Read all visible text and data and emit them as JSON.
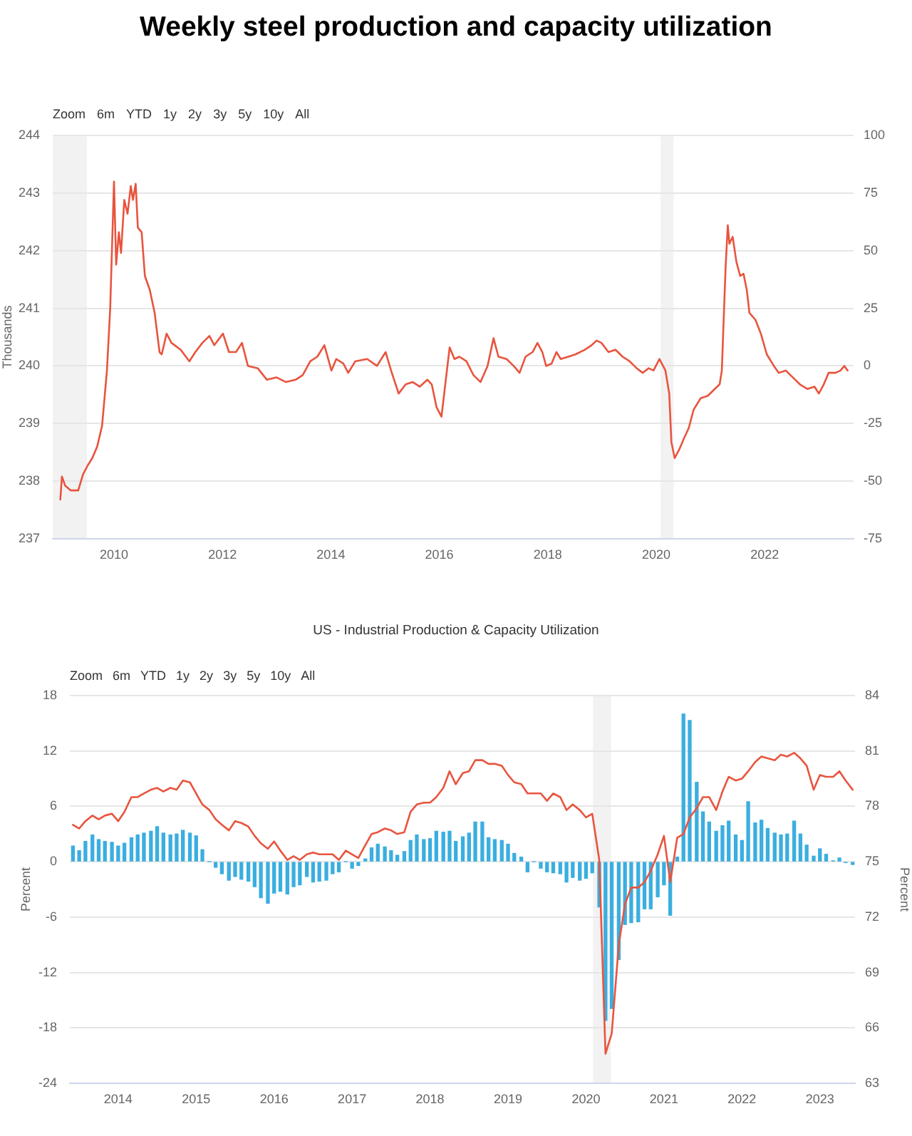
{
  "chart_data": [
    {
      "type": "line",
      "title": "Weekly steel production and capacity utilization",
      "ylabel": "Thousands",
      "annotations": [
        "Zoom",
        "6m",
        "YTD",
        "1y",
        "2y",
        "3y",
        "5y",
        "10y",
        "All"
      ],
      "x": [
        2009.01,
        2009.04,
        2009.1,
        2009.2,
        2009.34,
        2009.43,
        2009.52,
        2009.6,
        2009.69,
        2009.78,
        2009.87,
        2009.93,
        2010.0,
        2010.04,
        2010.09,
        2010.13,
        2010.19,
        2010.25,
        2010.31,
        2010.35,
        2010.4,
        2010.44,
        2010.51,
        2010.57,
        2010.66,
        2010.75,
        2010.84,
        2010.88,
        2010.97,
        2011.06,
        2011.23,
        2011.39,
        2011.5,
        2011.63,
        2011.76,
        2011.85,
        2012.01,
        2012.12,
        2012.25,
        2012.36,
        2012.47,
        2012.65,
        2012.82,
        2013.0,
        2013.17,
        2013.35,
        2013.48,
        2013.62,
        2013.75,
        2013.88,
        2014.01,
        2014.1,
        2014.23,
        2014.32,
        2014.45,
        2014.67,
        2014.85,
        2015.01,
        2015.11,
        2015.25,
        2015.38,
        2015.51,
        2015.64,
        2015.78,
        2015.86,
        2015.95,
        2016.04,
        2016.1,
        2016.19,
        2016.28,
        2016.37,
        2016.5,
        2016.63,
        2016.76,
        2016.89,
        2017.0,
        2017.09,
        2017.24,
        2017.37,
        2017.48,
        2017.59,
        2017.72,
        2017.81,
        2017.9,
        2017.97,
        2018.07,
        2018.16,
        2018.24,
        2018.38,
        2018.51,
        2018.68,
        2018.81,
        2018.9,
        2018.99,
        2019.12,
        2019.25,
        2019.38,
        2019.51,
        2019.64,
        2019.75,
        2019.86,
        2019.95,
        2020.06,
        2020.17,
        2020.24,
        2020.28,
        2020.34,
        2020.43,
        2020.52,
        2020.6,
        2020.69,
        2020.82,
        2020.95,
        2021.08,
        2021.17,
        2021.21,
        2021.28,
        2021.32,
        2021.35,
        2021.41,
        2021.48,
        2021.55,
        2021.61,
        2021.67,
        2021.72,
        2021.83,
        2021.93,
        2022.04,
        2022.17,
        2022.26,
        2022.39,
        2022.52,
        2022.65,
        2022.79,
        2022.92,
        2023.0,
        2023.09,
        2023.18,
        2023.31,
        2023.4,
        2023.47,
        2023.53
      ],
      "series": [
        {
          "color": "#e8543e",
          "axis": "y2",
          "values": [
            -58,
            -48,
            -52,
            -54,
            -54,
            -47,
            -43,
            -40,
            -35,
            -26,
            -2,
            25,
            80,
            44,
            58,
            49,
            72,
            66,
            78,
            72,
            79,
            60,
            58,
            39,
            33,
            23,
            6,
            5,
            14,
            10,
            7,
            2,
            6,
            10,
            13,
            9,
            14,
            6,
            6,
            10,
            0,
            -1,
            -6,
            -5,
            -7,
            -6,
            -4,
            2,
            4,
            9,
            -2,
            3,
            1,
            -3,
            2,
            3,
            0,
            6,
            -2,
            -12,
            -8,
            -7,
            -9,
            -6,
            -8,
            -18,
            -22,
            -10,
            8,
            3,
            4,
            2,
            -4,
            -7,
            0,
            12,
            4,
            3,
            0,
            -3,
            4,
            6,
            10,
            6,
            0,
            1,
            6,
            3,
            4,
            5,
            7,
            9,
            11,
            10,
            6,
            7,
            4,
            2,
            -1,
            -3,
            -1,
            -2,
            3,
            -2,
            -12,
            -33,
            -40,
            -36,
            -31,
            -27,
            -19,
            -14,
            -13,
            -10,
            -8,
            -2,
            43,
            61,
            53,
            56,
            45,
            39,
            40,
            33,
            23,
            20,
            14,
            5,
            0,
            -3,
            -2,
            -5,
            -8,
            -10,
            -9,
            -12,
            -8,
            -3,
            -3,
            -2,
            0,
            -2
          ]
        }
      ],
      "xlim": [
        2008.87,
        2023.64
      ],
      "xticks": [
        2010,
        2012,
        2014,
        2016,
        2018,
        2020,
        2022
      ],
      "ylim": [
        237,
        244
      ],
      "yticks": [
        237,
        238,
        239,
        240,
        241,
        242,
        243,
        244
      ],
      "y2lim": [
        -75,
        100
      ],
      "y2ticks": [
        -75,
        -50,
        -25,
        0,
        25,
        50,
        75,
        100
      ],
      "bands": [
        {
          "axis": "x",
          "from": 2008.87,
          "to": 2009.5,
          "color": "#f2f2f2"
        },
        {
          "axis": "x",
          "from": 2020.08,
          "to": 2020.32,
          "color": "#f2f2f2"
        }
      ],
      "grid": "y"
    },
    {
      "type": "bar",
      "title": "US - Industrial Production & Capacity Utilization",
      "ylabel": "Percent",
      "y2label": "Percent",
      "annotations": [
        "Zoom",
        "6m",
        "YTD",
        "1y",
        "2y",
        "3y",
        "5y",
        "10y",
        "All"
      ],
      "x": [
        2013.42,
        2013.5,
        2013.58,
        2013.67,
        2013.75,
        2013.83,
        2013.92,
        2014.0,
        2014.08,
        2014.17,
        2014.25,
        2014.33,
        2014.42,
        2014.5,
        2014.58,
        2014.67,
        2014.75,
        2014.83,
        2014.92,
        2015.0,
        2015.08,
        2015.17,
        2015.25,
        2015.33,
        2015.42,
        2015.5,
        2015.58,
        2015.67,
        2015.75,
        2015.83,
        2015.92,
        2016.0,
        2016.08,
        2016.17,
        2016.25,
        2016.33,
        2016.42,
        2016.5,
        2016.58,
        2016.67,
        2016.75,
        2016.83,
        2016.92,
        2017.0,
        2017.08,
        2017.17,
        2017.25,
        2017.33,
        2017.42,
        2017.5,
        2017.58,
        2017.67,
        2017.75,
        2017.83,
        2017.92,
        2018.0,
        2018.08,
        2018.17,
        2018.25,
        2018.33,
        2018.42,
        2018.5,
        2018.58,
        2018.67,
        2018.75,
        2018.83,
        2018.92,
        2019.0,
        2019.08,
        2019.17,
        2019.25,
        2019.33,
        2019.42,
        2019.5,
        2019.58,
        2019.67,
        2019.75,
        2019.83,
        2019.92,
        2020.0,
        2020.08,
        2020.17,
        2020.25,
        2020.33,
        2020.42,
        2020.5,
        2020.58,
        2020.67,
        2020.75,
        2020.83,
        2020.92,
        2021.0,
        2021.08,
        2021.17,
        2021.25,
        2021.33,
        2021.42,
        2021.5,
        2021.58,
        2021.67,
        2021.75,
        2021.83,
        2021.92,
        2022.0,
        2022.08,
        2022.17,
        2022.25,
        2022.33,
        2022.42,
        2022.5,
        2022.58,
        2022.67,
        2022.75,
        2022.83,
        2022.92,
        2023.0,
        2023.08,
        2023.17,
        2023.25,
        2023.33,
        2023.42
      ],
      "series": [
        {
          "color": "#3aaee0",
          "values": [
            1.7,
            1.2,
            2.2,
            2.9,
            2.4,
            2.2,
            2.1,
            1.7,
            2.0,
            2.6,
            2.9,
            3.1,
            3.3,
            3.8,
            3.1,
            2.9,
            3.0,
            3.4,
            3.1,
            2.8,
            1.3,
            0,
            -0.6,
            -1.3,
            -2.0,
            -1.6,
            -1.9,
            -2.1,
            -2.7,
            -3.9,
            -4.5,
            -3.4,
            -3.2,
            -3.5,
            -2.7,
            -2.5,
            -1.6,
            -2.2,
            -2.1,
            -2.0,
            -1.3,
            -1.1,
            0,
            -0.7,
            -0.4,
            0.3,
            1.5,
            1.9,
            1.6,
            1.2,
            0.7,
            1.1,
            2.3,
            2.9,
            2.4,
            2.5,
            3.3,
            3.2,
            3.3,
            2.2,
            2.7,
            3.1,
            4.3,
            4.3,
            2.6,
            2.4,
            2.3,
            1.9,
            0.9,
            0.5,
            -1.1,
            0,
            -0.7,
            -1.1,
            -1.2,
            -1.3,
            -2.2,
            -1.7,
            -2.0,
            -1.8,
            -1.2,
            -4.9,
            -17.2,
            -15.9,
            -10.6,
            -6.8,
            -6.6,
            -6.5,
            -5.1,
            -5.1,
            -3.8,
            -2.5,
            -5.8,
            0.5,
            16.0,
            15.3,
            8.6,
            5.4,
            4.3,
            3.3,
            3.9,
            4.4,
            2.9,
            2.3,
            6.5,
            4.2,
            4.5,
            3.6,
            3.1,
            2.9,
            3.0,
            4.4,
            3.0,
            1.8,
            0.6,
            1.4,
            0.8,
            0.1,
            0.4,
            -0.1,
            -0.3
          ]
        },
        {
          "type": "line",
          "color": "#e8543e",
          "axis": "y2",
          "values": [
            77.0,
            76.8,
            77.2,
            77.5,
            77.3,
            77.5,
            77.6,
            77.2,
            77.7,
            78.5,
            78.5,
            78.7,
            78.9,
            79.0,
            78.8,
            79.0,
            78.9,
            79.4,
            79.3,
            78.7,
            78.1,
            77.8,
            77.3,
            77.0,
            76.7,
            77.2,
            77.1,
            76.9,
            76.4,
            76.0,
            75.7,
            76.1,
            75.6,
            75.1,
            75.3,
            75.1,
            75.4,
            75.5,
            75.4,
            75.4,
            75.4,
            75.1,
            75.6,
            75.4,
            75.2,
            75.9,
            76.5,
            76.6,
            76.8,
            76.7,
            76.5,
            76.6,
            77.7,
            78.1,
            78.2,
            78.2,
            78.5,
            79.0,
            79.9,
            79.2,
            79.8,
            79.9,
            80.5,
            80.5,
            80.3,
            80.3,
            80.2,
            79.7,
            79.3,
            79.2,
            78.7,
            78.7,
            78.7,
            78.3,
            78.7,
            78.5,
            77.8,
            78.1,
            77.8,
            77.4,
            77.6,
            75.1,
            64.6,
            65.7,
            70.5,
            72.7,
            73.6,
            73.6,
            73.9,
            74.5,
            75.4,
            76.4,
            73.9,
            76.3,
            76.5,
            77.4,
            77.9,
            78.5,
            78.5,
            77.8,
            78.8,
            79.6,
            79.4,
            79.5,
            79.9,
            80.4,
            80.7,
            80.6,
            80.5,
            80.8,
            80.7,
            80.9,
            80.6,
            80.2,
            78.9,
            79.7,
            79.6,
            79.6,
            79.9,
            79.4,
            78.9
          ]
        }
      ],
      "xlim": [
        2013.38,
        2023.45
      ],
      "xticks": [
        2014,
        2015,
        2016,
        2017,
        2018,
        2019,
        2020,
        2021,
        2022,
        2023
      ],
      "ylim": [
        -24,
        18
      ],
      "yticks": [
        -24,
        -18,
        -12,
        -6,
        0,
        6,
        12,
        18
      ],
      "y2lim": [
        63,
        84
      ],
      "y2ticks": [
        63,
        66,
        69,
        72,
        75,
        78,
        81,
        84
      ],
      "bands": [
        {
          "axis": "x",
          "from": 2020.09,
          "to": 2020.32,
          "color": "#f2f2f2"
        }
      ],
      "grid": "y"
    }
  ]
}
